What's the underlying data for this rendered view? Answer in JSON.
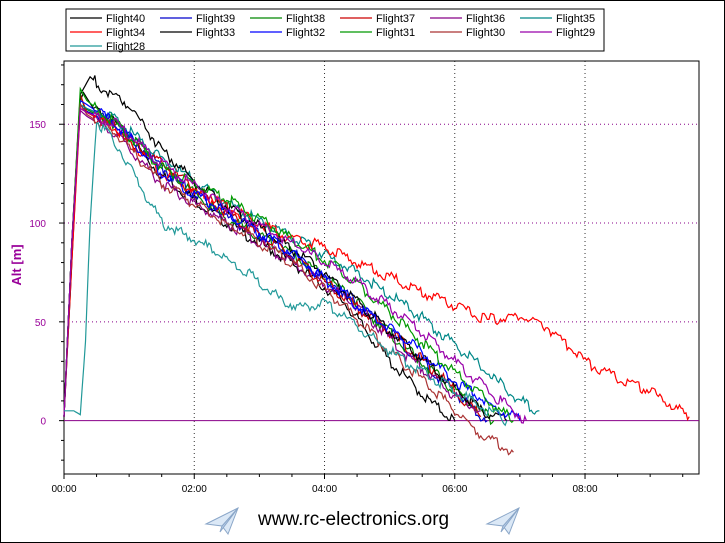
{
  "chart_data": {
    "type": "line",
    "title": "",
    "xlabel": "",
    "ylabel": "Alt [m]",
    "xlim_minutes": [
      0,
      9.75
    ],
    "ylim": [
      -27,
      182
    ],
    "x_ticks": [
      {
        "label": "00:00",
        "value": 0
      },
      {
        "label": "02:00",
        "value": 2
      },
      {
        "label": "04:00",
        "value": 4
      },
      {
        "label": "06:00",
        "value": 6
      },
      {
        "label": "08:00",
        "value": 8
      }
    ],
    "y_ticks": [
      0,
      50,
      100,
      150
    ],
    "grid": true,
    "legend_position": "top",
    "series": [
      {
        "name": "Flight40",
        "color": "#000000",
        "x": [
          0,
          0.12,
          0.25,
          0.3,
          0.45,
          0.8,
          1.5,
          2.5,
          3.5,
          4.3,
          5,
          5.6,
          6.0
        ],
        "y": [
          2,
          80,
          162,
          166,
          158,
          150,
          124,
          100,
          80,
          60,
          30,
          10,
          0
        ]
      },
      {
        "name": "Flight39",
        "color": "#0000cc",
        "x": [
          0,
          0.12,
          0.25,
          0.32,
          0.8,
          1.5,
          2.5,
          3.5,
          4.3,
          5,
          5.8,
          6.5
        ],
        "y": [
          2,
          90,
          160,
          157,
          150,
          128,
          103,
          85,
          65,
          45,
          20,
          0
        ]
      },
      {
        "name": "Flight38",
        "color": "#008800",
        "x": [
          0,
          0.12,
          0.25,
          0.32,
          0.8,
          1.5,
          2.5,
          3.5,
          4.5,
          5.3,
          6.0,
          6.6
        ],
        "y": [
          2,
          90,
          165,
          158,
          150,
          128,
          102,
          85,
          60,
          35,
          15,
          0
        ]
      },
      {
        "name": "Flight37",
        "color": "#cc0000",
        "x": [
          0,
          0.12,
          0.25,
          0.35,
          0.8,
          1.5,
          2.5,
          3.4,
          4.2,
          5.0,
          5.8,
          6.4
        ],
        "y": [
          2,
          90,
          165,
          156,
          148,
          130,
          105,
          85,
          65,
          45,
          22,
          2
        ]
      },
      {
        "name": "Flight36",
        "color": "#880088",
        "x": [
          0,
          0.12,
          0.25,
          0.35,
          0.8,
          1.5,
          2.5,
          3.5,
          4.5,
          5.2,
          5.9,
          6.4
        ],
        "y": [
          2,
          90,
          157,
          154,
          145,
          120,
          100,
          80,
          58,
          35,
          15,
          5
        ]
      },
      {
        "name": "Flight35",
        "color": "#008888",
        "x": [
          0,
          0.12,
          0.25,
          0.35,
          0.8,
          1.5,
          2.5,
          3.5,
          4.5,
          5.5,
          6.3,
          7.0,
          7.3
        ],
        "y": [
          2,
          90,
          160,
          158,
          152,
          133,
          110,
          93,
          75,
          52,
          30,
          10,
          5
        ]
      },
      {
        "name": "Flight34",
        "color": "#ff0000",
        "x": [
          0,
          0.12,
          0.25,
          0.35,
          0.8,
          1.5,
          2.5,
          3.5,
          4.0,
          4.5,
          5.0,
          5.5,
          6.0,
          6.5,
          7.0,
          7.4,
          8.0,
          8.5,
          9.0,
          9.5,
          9.6
        ],
        "y": [
          2,
          80,
          158,
          156,
          148,
          125,
          108,
          92,
          88,
          80,
          73,
          65,
          58,
          51,
          53,
          48,
          30,
          22,
          15,
          4,
          2
        ]
      },
      {
        "name": "Flight33",
        "color": "#000000",
        "x": [
          0,
          0.12,
          0.25,
          0.4,
          0.6,
          1.0,
          1.5,
          2.2,
          3.0,
          3.8,
          4.5,
          5.2,
          5.9,
          6.4,
          6.8
        ],
        "y": [
          2,
          90,
          165,
          174,
          168,
          160,
          137,
          115,
          98,
          80,
          60,
          40,
          20,
          5,
          0
        ]
      },
      {
        "name": "Flight32",
        "color": "#0000ff",
        "x": [
          0,
          0.12,
          0.25,
          0.35,
          0.8,
          1.5,
          2.5,
          3.5,
          4.5,
          5.3,
          6.0,
          6.7,
          7.0
        ],
        "y": [
          2,
          90,
          162,
          160,
          150,
          125,
          105,
          85,
          58,
          40,
          20,
          5,
          0
        ]
      },
      {
        "name": "Flight31",
        "color": "#009900",
        "x": [
          0,
          0.12,
          0.25,
          0.35,
          0.8,
          1.5,
          2.5,
          3.5,
          4.3,
          5.0,
          5.8,
          6.5,
          6.9
        ],
        "y": [
          2,
          90,
          168,
          162,
          150,
          128,
          112,
          92,
          75,
          55,
          30,
          10,
          0
        ]
      },
      {
        "name": "Flight30",
        "color": "#aa3333",
        "x": [
          0,
          0.12,
          0.25,
          0.35,
          0.8,
          1.5,
          2.5,
          3.5,
          4.3,
          5.0,
          5.7,
          6.3,
          6.9
        ],
        "y": [
          2,
          90,
          160,
          155,
          145,
          120,
          100,
          80,
          58,
          35,
          15,
          -5,
          -16
        ]
      },
      {
        "name": "Flight29",
        "color": "#9900aa",
        "x": [
          0,
          0.12,
          0.25,
          0.35,
          0.8,
          1.5,
          2.5,
          3.5,
          4.5,
          5.3,
          6.0,
          6.7,
          7.1
        ],
        "y": [
          2,
          90,
          158,
          156,
          150,
          130,
          108,
          90,
          70,
          50,
          30,
          10,
          0
        ]
      },
      {
        "name": "Flight28",
        "color": "#229999",
        "x": [
          0,
          0.15,
          0.25,
          0.33,
          0.4,
          0.5,
          0.8,
          1.5,
          2.2,
          2.8,
          3.3,
          3.6,
          4.0,
          4.5,
          5.0,
          5.5,
          6.0,
          6.5,
          6.8
        ],
        "y": [
          5,
          5,
          3,
          40,
          100,
          152,
          140,
          100,
          88,
          75,
          62,
          57,
          60,
          48,
          35,
          25,
          15,
          5,
          0
        ]
      }
    ],
    "zero_line_color": "#880088"
  },
  "footer": {
    "url": "www.rc-electronics.org"
  },
  "colors": {
    "axis_label": "#990099",
    "grid": "#880088"
  }
}
